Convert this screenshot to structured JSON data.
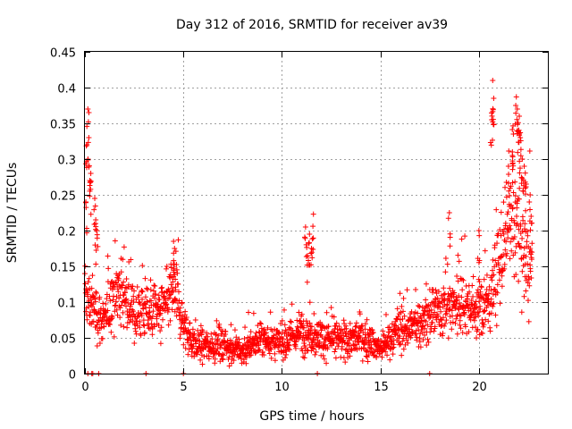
{
  "chart_data": {
    "type": "scatter",
    "title": "Day 312 of 2016, SRMTID for receiver av39",
    "xlabel": "GPS time / hours",
    "ylabel": "SRMTID / TECUs",
    "xlim": [
      0,
      23.5
    ],
    "ylim": [
      0,
      0.45
    ],
    "x_ticks": [
      0,
      5,
      10,
      15,
      20
    ],
    "x_tick_labels": [
      "0",
      "5",
      "10",
      "15",
      "20"
    ],
    "y_ticks": [
      0,
      0.05,
      0.1,
      0.15,
      0.2,
      0.25,
      0.3,
      0.35,
      0.4,
      0.45
    ],
    "y_tick_labels": [
      "0",
      "0.05",
      "0.1",
      "0.15",
      "0.2",
      "0.25",
      "0.3",
      "0.35",
      "0.4",
      "0.45"
    ],
    "grid": true,
    "marker": "+",
    "series": [
      {
        "name": "SRMTID av39",
        "color": "#ff0000",
        "note": "dense point cloud approximated as piecewise baseline with noise and spike clusters",
        "baseline": [
          {
            "x": 0.0,
            "y": 0.11
          },
          {
            "x": 0.5,
            "y": 0.09
          },
          {
            "x": 1.0,
            "y": 0.07
          },
          {
            "x": 1.5,
            "y": 0.12
          },
          {
            "x": 2.0,
            "y": 0.11
          },
          {
            "x": 2.5,
            "y": 0.08
          },
          {
            "x": 3.0,
            "y": 0.09
          },
          {
            "x": 3.5,
            "y": 0.085
          },
          {
            "x": 4.0,
            "y": 0.09
          },
          {
            "x": 4.5,
            "y": 0.12
          },
          {
            "x": 5.0,
            "y": 0.07
          },
          {
            "x": 5.5,
            "y": 0.04
          },
          {
            "x": 6.0,
            "y": 0.04
          },
          {
            "x": 7.0,
            "y": 0.04
          },
          {
            "x": 8.0,
            "y": 0.03
          },
          {
            "x": 9.0,
            "y": 0.05
          },
          {
            "x": 10.0,
            "y": 0.04
          },
          {
            "x": 11.0,
            "y": 0.06
          },
          {
            "x": 12.0,
            "y": 0.05
          },
          {
            "x": 13.0,
            "y": 0.045
          },
          {
            "x": 14.0,
            "y": 0.05
          },
          {
            "x": 15.0,
            "y": 0.035
          },
          {
            "x": 16.0,
            "y": 0.06
          },
          {
            "x": 17.0,
            "y": 0.07
          },
          {
            "x": 18.0,
            "y": 0.09
          },
          {
            "x": 19.0,
            "y": 0.1
          },
          {
            "x": 20.0,
            "y": 0.09
          },
          {
            "x": 20.5,
            "y": 0.1
          },
          {
            "x": 21.0,
            "y": 0.15
          },
          {
            "x": 21.5,
            "y": 0.2
          },
          {
            "x": 22.0,
            "y": 0.2
          },
          {
            "x": 22.5,
            "y": 0.15
          }
        ],
        "spikes": [
          {
            "x": 0.05,
            "y": 0.24
          },
          {
            "x": 0.1,
            "y": 0.32
          },
          {
            "x": 0.15,
            "y": 0.37
          },
          {
            "x": 0.2,
            "y": 0.33
          },
          {
            "x": 0.25,
            "y": 0.27
          },
          {
            "x": 0.3,
            "y": 0.28
          },
          {
            "x": 0.5,
            "y": 0.245
          },
          {
            "x": 0.55,
            "y": 0.215
          },
          {
            "x": 0.6,
            "y": 0.2
          },
          {
            "x": 4.5,
            "y": 0.185
          },
          {
            "x": 4.55,
            "y": 0.175
          },
          {
            "x": 11.2,
            "y": 0.205
          },
          {
            "x": 11.4,
            "y": 0.195
          },
          {
            "x": 11.6,
            "y": 0.223
          },
          {
            "x": 11.5,
            "y": 0.175
          },
          {
            "x": 11.3,
            "y": 0.165
          },
          {
            "x": 18.5,
            "y": 0.225
          },
          {
            "x": 20.0,
            "y": 0.2
          },
          {
            "x": 20.7,
            "y": 0.41
          },
          {
            "x": 20.75,
            "y": 0.385
          },
          {
            "x": 20.65,
            "y": 0.355
          },
          {
            "x": 21.5,
            "y": 0.29
          },
          {
            "x": 21.7,
            "y": 0.31
          },
          {
            "x": 21.75,
            "y": 0.335
          },
          {
            "x": 21.9,
            "y": 0.387
          },
          {
            "x": 21.95,
            "y": 0.37
          },
          {
            "x": 22.0,
            "y": 0.34
          },
          {
            "x": 22.05,
            "y": 0.36
          },
          {
            "x": 22.1,
            "y": 0.33
          },
          {
            "x": 22.2,
            "y": 0.3
          },
          {
            "x": 22.3,
            "y": 0.29
          },
          {
            "x": 22.4,
            "y": 0.265
          },
          {
            "x": 22.6,
            "y": 0.25
          },
          {
            "x": 22.65,
            "y": 0.22
          }
        ],
        "zeros_x": [
          0.15,
          0.35,
          0.4,
          0.7,
          3.1,
          5.0,
          11.8,
          17.5
        ]
      }
    ]
  }
}
